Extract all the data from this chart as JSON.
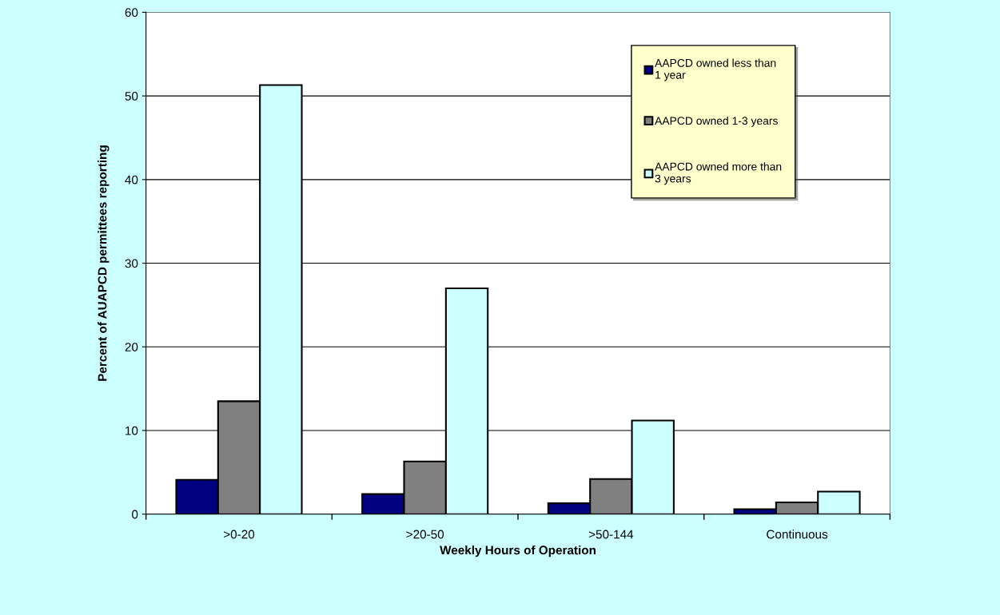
{
  "chart_data": {
    "type": "bar",
    "xlabel": "Weekly Hours of Operation",
    "ylabel": "Percent of AUAPCD permittees reporting",
    "categories": [
      ">0-20",
      ">20-50",
      ">50-144",
      "Continuous"
    ],
    "series": [
      {
        "name": "AAPCD owned less than 1 year",
        "color": "#000080",
        "values": [
          4.1,
          2.4,
          1.3,
          0.6
        ]
      },
      {
        "name": "AAPCD owned 1-3 years",
        "color": "#808080",
        "values": [
          13.5,
          6.3,
          4.2,
          1.4
        ]
      },
      {
        "name": "AAPCD owned more than 3 years",
        "color": "#ccffff",
        "values": [
          51.3,
          27.0,
          11.2,
          2.7
        ]
      }
    ],
    "ylim": [
      0,
      60
    ],
    "yticks": [
      0,
      10,
      20,
      30,
      40,
      50,
      60
    ],
    "grid": "y",
    "legend": "top right"
  }
}
